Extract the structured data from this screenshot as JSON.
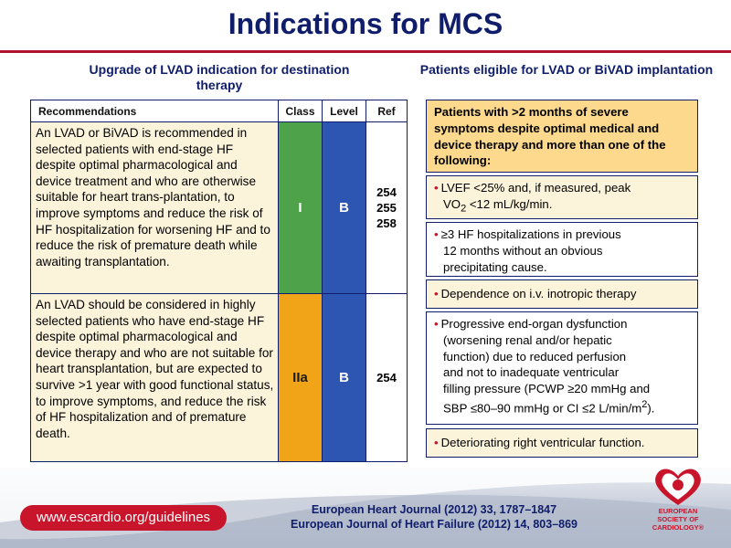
{
  "slide": {
    "title": "Indications for MCS"
  },
  "left_section": {
    "heading": "Upgrade of LVAD indication for destination therapy",
    "table": {
      "columns": [
        "Recommendations",
        "Class",
        "Level",
        "Ref"
      ],
      "rows": [
        {
          "text": "An LVAD or BiVAD is recommended in selected patients with end-stage HF despite optimal pharmacological and device treatment and who are otherwise suitable for heart trans-plantation, to improve symptoms and reduce the risk of HF hospitalization for worsening HF and to reduce the risk of premature death while awaiting transplantation.",
          "class": "I",
          "level": "B",
          "refs": [
            "254",
            "255",
            "258"
          ]
        },
        {
          "text": "An LVAD should be considered in highly selected patients who have end-stage HF despite optimal pharmacological and device therapy and who are not suitable for heart transplantation, but are expected to survive >1 year with good functional status, to improve symptoms, and reduce the risk of HF hospitalization and of premature death.",
          "class": "IIa",
          "level": "B",
          "refs": [
            "254"
          ]
        }
      ]
    }
  },
  "right_section": {
    "heading": "Patients eligible for LVAD or BiVAD implantation",
    "criteria_header": "Patients with >2 months of severe symptoms despite optimal medical and device therapy and more than one of the following:",
    "criteria": {
      "c1_a": "LVEF <25% and, if measured, peak",
      "c1_b": "VO",
      "c1_sub": "2",
      "c1_c": " <12 mL/kg/min.",
      "c2_a": "≥3 HF hospitalizations in previous",
      "c2_b": "12 months without an obvious",
      "c2_c": "precipitating cause.",
      "c3": "Dependence on i.v. inotropic therapy",
      "c4_a": "Progressive end-organ dysfunction",
      "c4_b": "(worsening renal and/or hepatic",
      "c4_c": "function) due to reduced perfusion",
      "c4_d": "and not to inadequate ventricular",
      "c4_e": "filling pressure (PCWP ≥20 mmHg and",
      "c4_f": "SBP ≤80–90 mmHg or CI ≤2 L/min/m",
      "c4_sup": "2",
      "c4_g": ").",
      "c5": "Deteriorating right ventricular function."
    },
    "bullet_glyph": "•"
  },
  "footer": {
    "url": "www.escardio.org/guidelines",
    "citation_1": "European Heart Journal (2012) 33, 1787–1847",
    "citation_2": "European Journal of Heart Failure (2012) 14, 803–869",
    "logo_text": [
      "EUROPEAN",
      "SOCIETY OF",
      "CARDIOLOGY®"
    ]
  },
  "colors": {
    "title": "#0f1d6a",
    "accent_red": "#c8152b",
    "class_I": "#4ea34a",
    "class_IIa": "#f2a418",
    "level_B": "#2d55b2",
    "row_fill": "#fcf3db",
    "criteria_header_fill": "#fcd98d"
  }
}
